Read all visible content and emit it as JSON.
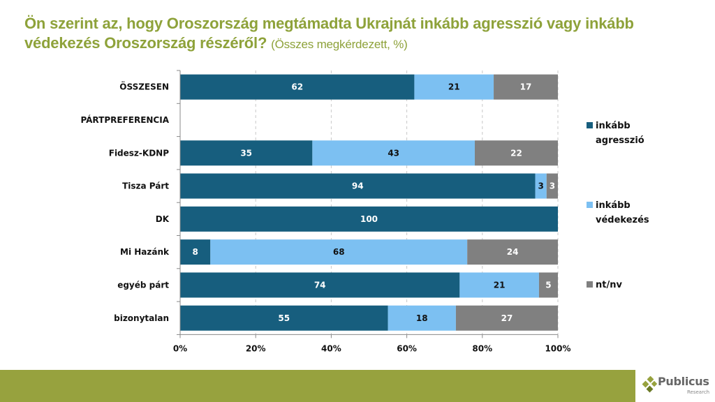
{
  "header": {
    "title": "Ön szerint az, hogy Oroszország megtámadta Ukrajnát inkább agresszió vagy inkább védekezés Oroszország részéről?",
    "subtitle": "(Összes megkérdezett, %)"
  },
  "chart_data": {
    "type": "bar",
    "orientation": "horizontal",
    "stacked": true,
    "title": "Ön szerint az, hogy Oroszország megtámadta Ukrajnát inkább agresszió vagy inkább védekezés Oroszország részéről? (Összes megkérdezett, %)",
    "xlabel": "",
    "ylabel": "",
    "xlim": [
      0,
      100
    ],
    "x_ticks": [
      "0%",
      "20%",
      "40%",
      "60%",
      "80%",
      "100%"
    ],
    "grid": "vertical dashed",
    "legend_position": "right",
    "categories": [
      "ÖSSZESEN",
      "PÁRTPREFERENCIA",
      "Fidesz-KDNP",
      "Tisza Párt",
      "DK",
      "Mi Hazánk",
      "egyéb párt",
      "bizonytalan"
    ],
    "series": [
      {
        "name": "inkább agresszió",
        "color": "#175e7e",
        "label_color": "#ffffff",
        "values": [
          62,
          null,
          35,
          94,
          100,
          8,
          74,
          55
        ]
      },
      {
        "name": "inkább védekezés",
        "color": "#7cc0f2",
        "label_color": "#111111",
        "values": [
          21,
          null,
          43,
          3,
          0,
          68,
          21,
          18
        ]
      },
      {
        "name": "nt/nv",
        "color": "#808080",
        "label_color": "#ffffff",
        "values": [
          17,
          null,
          22,
          3,
          0,
          24,
          5,
          27
        ]
      }
    ]
  },
  "legend": {
    "items": [
      {
        "line1": "inkább",
        "line2": "agresszió",
        "color": "#175e7e"
      },
      {
        "line1": "inkább",
        "line2": "védekezés",
        "color": "#7cc0f2"
      },
      {
        "line1": "nt/nv",
        "line2": "",
        "color": "#808080"
      }
    ]
  },
  "branding": {
    "logo_name": "Publicus",
    "logo_sub": "Research",
    "footer_color": "#97a23e"
  }
}
